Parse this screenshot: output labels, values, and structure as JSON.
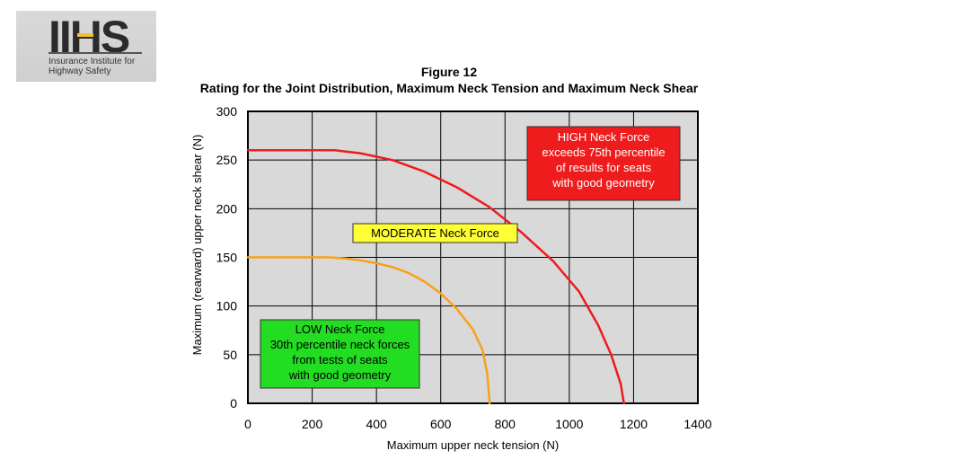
{
  "logo": {
    "mark": "IIHS",
    "text": "Insurance Institute for\nHighway Safety"
  },
  "figure_number": "Figure 12",
  "figure_title": "Rating for the Joint Distribution, Maximum Neck Tension and Maximum Neck Shear",
  "colors": {
    "high": "#ee1c1c",
    "moderate": "#ffff33",
    "low": "#22dd22",
    "orange_curve": "#f7a11a",
    "red_curve": "#ee1c1c",
    "plot_bg": "#d9d9d9"
  },
  "chart_data": {
    "type": "line",
    "title": "Rating for the Joint Distribution, Maximum Neck Tension and Maximum Neck Shear",
    "xlabel": "Maximum upper neck tension (N)",
    "ylabel": "Maximum (rearward) upper neck shear (N)",
    "xlim": [
      0,
      1400
    ],
    "ylim": [
      0,
      300
    ],
    "x_ticks": [
      0,
      200,
      400,
      600,
      800,
      1000,
      1200,
      1400
    ],
    "y_ticks": [
      0,
      50,
      100,
      150,
      200,
      250,
      300
    ],
    "grid": true,
    "series": [
      {
        "color": "#f7a11a",
        "points": [
          [
            0,
            150
          ],
          [
            250,
            150
          ],
          [
            300,
            149
          ],
          [
            350,
            147
          ],
          [
            400,
            144
          ],
          [
            450,
            140
          ],
          [
            500,
            134
          ],
          [
            550,
            125
          ],
          [
            600,
            113
          ],
          [
            650,
            97
          ],
          [
            700,
            76
          ],
          [
            730,
            55
          ],
          [
            745,
            30
          ],
          [
            752,
            0
          ]
        ]
      },
      {
        "color": "#ee1c1c",
        "points": [
          [
            0,
            260
          ],
          [
            270,
            260
          ],
          [
            350,
            257
          ],
          [
            450,
            250
          ],
          [
            550,
            238
          ],
          [
            650,
            222
          ],
          [
            750,
            202
          ],
          [
            850,
            176
          ],
          [
            950,
            146
          ],
          [
            1030,
            115
          ],
          [
            1090,
            80
          ],
          [
            1130,
            50
          ],
          [
            1160,
            20
          ],
          [
            1170,
            0
          ]
        ]
      }
    ],
    "annotations": [
      {
        "id": "high",
        "lines": [
          "HIGH Neck Force",
          "exceeds 75th percentile",
          "of results for seats",
          "with good geometry"
        ]
      },
      {
        "id": "moderate",
        "lines": [
          "MODERATE Neck Force"
        ]
      },
      {
        "id": "low",
        "lines": [
          "LOW Neck Force",
          "30th percentile neck forces",
          "from tests of seats",
          "with good geometry"
        ]
      }
    ]
  }
}
